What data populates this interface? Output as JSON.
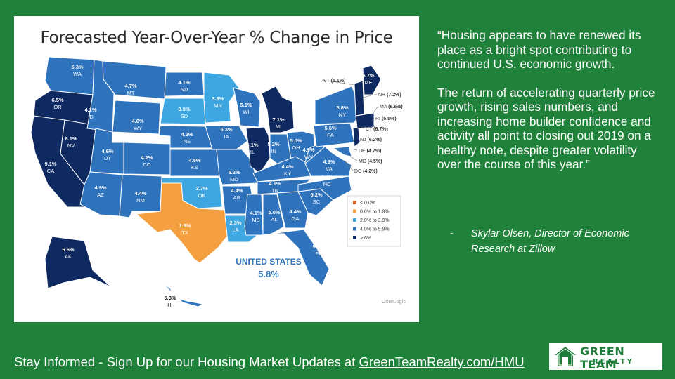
{
  "map": {
    "title": "Forecasted Year-Over-Year % Change in Price",
    "credit": "CoreLogic",
    "national": {
      "label": "UNITED STATES",
      "value": "5.8%"
    },
    "colors": {
      "negative": "#d9642e",
      "low": "#f5a040",
      "mid": "#3ea6e0",
      "high": "#2f73bd",
      "top": "#0e2a60"
    },
    "legend": [
      {
        "label": "< 0.0%",
        "class": "negative"
      },
      {
        "label": "0.0% to 1.9%",
        "class": "low"
      },
      {
        "label": "2.0% to 3.9%",
        "class": "mid"
      },
      {
        "label": "4.0% to 5.9%",
        "class": "high"
      },
      {
        "label": "> 6%",
        "class": "top"
      }
    ],
    "states": [
      {
        "abbr": "WA",
        "value": "5.3%"
      },
      {
        "abbr": "OR",
        "value": "6.5%"
      },
      {
        "abbr": "CA",
        "value": "9.1%"
      },
      {
        "abbr": "NV",
        "value": "8.1%"
      },
      {
        "abbr": "ID",
        "value": "4.2%"
      },
      {
        "abbr": "MT",
        "value": "4.7%"
      },
      {
        "abbr": "WY",
        "value": "4.0%"
      },
      {
        "abbr": "UT",
        "value": "4.6%"
      },
      {
        "abbr": "AZ",
        "value": "4.9%"
      },
      {
        "abbr": "CO",
        "value": "4.2%"
      },
      {
        "abbr": "NM",
        "value": "4.4%"
      },
      {
        "abbr": "ND",
        "value": "4.1%"
      },
      {
        "abbr": "SD",
        "value": "3.9%"
      },
      {
        "abbr": "NE",
        "value": "4.2%"
      },
      {
        "abbr": "KS",
        "value": "4.5%"
      },
      {
        "abbr": "OK",
        "value": "3.7%"
      },
      {
        "abbr": "TX",
        "value": "1.9%"
      },
      {
        "abbr": "MN",
        "value": "3.9%"
      },
      {
        "abbr": "IA",
        "value": "5.3%"
      },
      {
        "abbr": "MO",
        "value": "5.2%"
      },
      {
        "abbr": "AR",
        "value": "4.4%"
      },
      {
        "abbr": "LA",
        "value": "2.3%"
      },
      {
        "abbr": "WI",
        "value": "5.1%"
      },
      {
        "abbr": "IL",
        "value": "6.1%"
      },
      {
        "abbr": "MI",
        "value": "7.1%"
      },
      {
        "abbr": "IN",
        "value": "5.2%"
      },
      {
        "abbr": "OH",
        "value": "5.0%"
      },
      {
        "abbr": "KY",
        "value": "4.4%"
      },
      {
        "abbr": "TN",
        "value": "4.1%"
      },
      {
        "abbr": "MS",
        "value": "4.1%"
      },
      {
        "abbr": "AL",
        "value": "5.0%"
      },
      {
        "abbr": "GA",
        "value": "4.4%"
      },
      {
        "abbr": "FL",
        "value": "5.4%"
      },
      {
        "abbr": "SC",
        "value": "5.2%"
      },
      {
        "abbr": "NC",
        "value": "4.4%"
      },
      {
        "abbr": "VA",
        "value": "4.9%"
      },
      {
        "abbr": "WV",
        "value": "4.9%"
      },
      {
        "abbr": "PA",
        "value": "5.6%"
      },
      {
        "abbr": "NY",
        "value": "5.8%"
      },
      {
        "abbr": "ME",
        "value": "6.7%"
      },
      {
        "abbr": "AK",
        "value": "6.6%"
      },
      {
        "abbr": "HI",
        "value": "5.3%"
      }
    ],
    "small_states": {
      "vt": {
        "abbr": "VT",
        "value": "(5.1%)"
      },
      "nh": {
        "abbr": "NH",
        "value": "(7.2%)"
      },
      "ma": {
        "abbr": "MA",
        "value": "(6.6%)"
      },
      "ri": {
        "abbr": "RI",
        "value": "(5.5%)"
      },
      "ct": {
        "abbr": "CT",
        "value": "(6.7%)"
      },
      "nj": {
        "abbr": "NJ",
        "value": "(6.2%)"
      },
      "de": {
        "abbr": "DE",
        "value": "(4.7%)"
      },
      "md": {
        "abbr": "MD",
        "value": "(4.5%)"
      },
      "dc": {
        "abbr": "DC",
        "value": "(4.2%)"
      }
    }
  },
  "quote": {
    "paragraph1": "“Housing appears to have renewed its place as a bright spot contributing to continued U.S. economic growth.",
    "paragraph2": "The return of accelerating quarterly price growth, rising sales numbers, and increasing home builder confidence and activity all point to closing out 2019 on a healthy note, despite greater volatility over the course of this year.”",
    "dash": "-",
    "attribution": "Skylar Olsen, Director of Economic Research at Zillow"
  },
  "footer": {
    "prefix": "Stay Informed - Sign Up for our Housing Market Updates at ",
    "link": "GreenTeamRealty.com/HMU"
  },
  "logo": {
    "top": "GREEN TEAM",
    "bottom": "REALTY"
  }
}
